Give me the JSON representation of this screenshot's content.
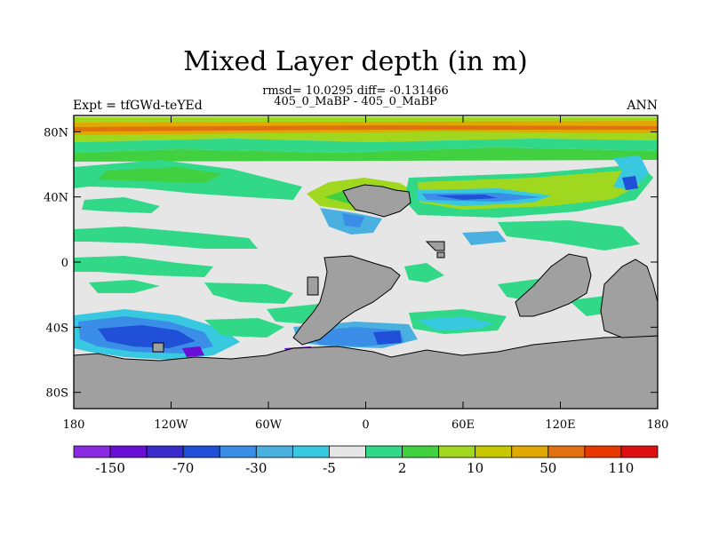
{
  "title": "Mixed Layer depth (in m)",
  "stats_line": "rmsd= 10.0295 diff= -0.131466",
  "case_line": "405_0_MaBP - 405_0_MaBP",
  "left_label": "Expt = tfGWd-teYEd",
  "right_label": "ANN",
  "map": {
    "projection": "cylindrical equidistant",
    "lon_range": [
      -180,
      180
    ],
    "lat_range": [
      -90,
      90
    ],
    "x_ticks": [
      {
        "value": -180,
        "label": "180"
      },
      {
        "value": -120,
        "label": "120W"
      },
      {
        "value": -60,
        "label": "60W"
      },
      {
        "value": 0,
        "label": "0"
      },
      {
        "value": 60,
        "label": "60E"
      },
      {
        "value": 120,
        "label": "120E"
      },
      {
        "value": 180,
        "label": "180"
      }
    ],
    "y_ticks": [
      {
        "value": 80,
        "label": "80N"
      },
      {
        "value": 40,
        "label": "40N"
      },
      {
        "value": 0,
        "label": "0"
      },
      {
        "value": -40,
        "label": "40S"
      },
      {
        "value": -80,
        "label": "80S"
      }
    ],
    "land_color": "#a0a0a0",
    "ocean_background_color": "#e6e6e6"
  },
  "colorbar": {
    "colors": [
      "#8a2be2",
      "#6a0fd8",
      "#3a2cc8",
      "#2050d8",
      "#3a8ee8",
      "#4ab0e0",
      "#38c8e0",
      "#e6e6e6",
      "#30d888",
      "#40d040",
      "#a0d820",
      "#c8c800",
      "#e0a800",
      "#e07010",
      "#e83800",
      "#e01010"
    ],
    "labels": [
      "-150",
      "-70",
      "-30",
      "-5",
      "2",
      "10",
      "50",
      "110"
    ]
  }
}
